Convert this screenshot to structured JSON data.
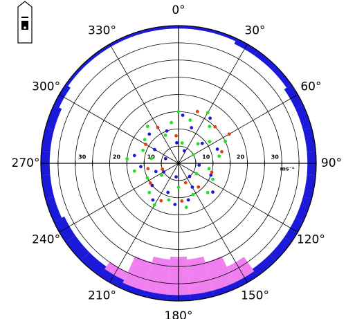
{
  "chart_data": {
    "type": "polar-scatter",
    "rlim": [
      0,
      40
    ],
    "rticks": [
      5,
      10,
      15,
      20,
      25,
      30,
      35,
      40
    ],
    "rlabels": [
      10,
      20,
      30
    ],
    "r_unit": "ms⁻¹",
    "thetaticks": [
      {
        "value": 0,
        "label": "0°"
      },
      {
        "value": 30,
        "label": "30°"
      },
      {
        "value": 60,
        "label": "60°"
      },
      {
        "value": 90,
        "label": "90°"
      },
      {
        "value": 120,
        "label": "120°"
      },
      {
        "value": 150,
        "label": "150°"
      },
      {
        "value": 180,
        "label": "180°"
      },
      {
        "value": 210,
        "label": "210°"
      },
      {
        "value": 240,
        "label": "240°"
      },
      {
        "value": 270,
        "label": "270°"
      },
      {
        "value": 300,
        "label": "300°"
      },
      {
        "value": 330,
        "label": "330°"
      }
    ],
    "series": [
      {
        "color": "#1a1ad8",
        "theta": [
          5,
          20,
          35,
          50,
          70,
          95,
          110,
          130,
          150,
          165,
          185,
          200,
          215,
          230,
          250,
          265,
          280,
          300,
          315,
          340,
          355,
          25,
          140,
          190,
          240,
          290
        ],
        "values": [
          14,
          11,
          16,
          9,
          12,
          6,
          10,
          13,
          8,
          11,
          12,
          9,
          13,
          10,
          7,
          11,
          13,
          8,
          12,
          10,
          6,
          4,
          5,
          4,
          5,
          4
        ]
      },
      {
        "color": "#22e022",
        "theta": [
          0,
          15,
          30,
          40,
          55,
          65,
          80,
          100,
          115,
          135,
          155,
          170,
          195,
          210,
          225,
          245,
          260,
          275,
          290,
          305,
          320,
          335,
          350,
          10,
          45,
          60,
          120,
          180,
          235,
          280
        ],
        "values": [
          15,
          13,
          17,
          14,
          11,
          15,
          12,
          9,
          11,
          12,
          10,
          13,
          11,
          14,
          12,
          10,
          13,
          15,
          11,
          12,
          14,
          9,
          12,
          6,
          8,
          5,
          6,
          7,
          6,
          8
        ]
      },
      {
        "color": "#e04010",
        "theta": [
          20,
          45,
          75,
          105,
          140,
          175,
          205,
          235,
          260,
          300,
          330,
          355,
          60,
          160,
          250
        ],
        "values": [
          16,
          15,
          13,
          10,
          9,
          11,
          12,
          10,
          9,
          11,
          12,
          8,
          17,
          6,
          5
        ]
      }
    ],
    "rim_lim": [
      0,
      20
    ],
    "rim_theta": [
      0,
      10,
      20,
      30,
      40,
      50,
      60,
      70,
      80,
      90,
      100,
      110,
      120,
      130,
      140,
      150,
      160,
      170,
      180,
      190,
      200,
      210,
      220,
      230,
      240,
      250,
      260,
      270,
      280,
      290,
      300,
      310,
      320,
      330,
      340,
      350
    ],
    "rim_series": [
      {
        "color": "#1a1ad8",
        "values": [
          1,
          1,
          1,
          2,
          2,
          2,
          3,
          3,
          3,
          3,
          3,
          3,
          3,
          3,
          3,
          2,
          2,
          2,
          2,
          2,
          2,
          3,
          4,
          4,
          4,
          3,
          3,
          3,
          3,
          3,
          2,
          1,
          1,
          1,
          1,
          1
        ]
      },
      {
        "color": "#f080f0",
        "values": [
          0,
          0,
          0,
          0,
          0,
          0,
          0,
          0,
          0,
          0,
          0,
          0,
          0,
          0,
          2,
          8,
          12,
          14,
          15,
          14,
          12,
          6,
          2,
          0,
          0,
          0,
          0,
          0,
          0,
          0,
          0,
          0,
          0,
          0,
          0,
          0
        ]
      }
    ]
  }
}
